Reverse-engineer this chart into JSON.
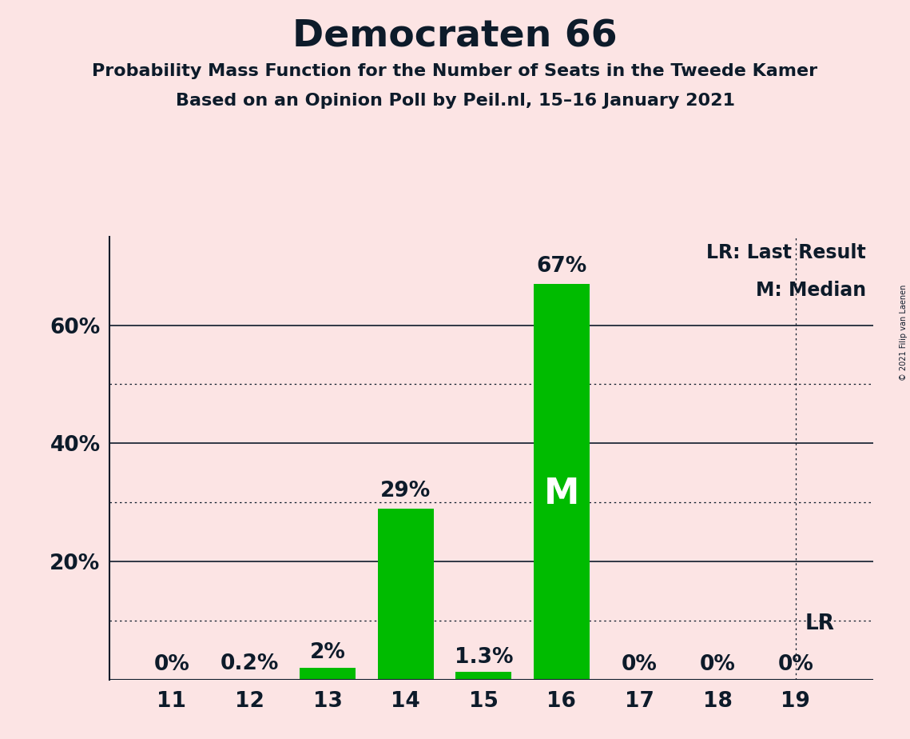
{
  "title": "Democraten 66",
  "subtitle1": "Probability Mass Function for the Number of Seats in the Tweede Kamer",
  "subtitle2": "Based on an Opinion Poll by Peil.nl, 15–16 January 2021",
  "copyright": "© 2021 Filip van Laenen",
  "seats": [
    11,
    12,
    13,
    14,
    15,
    16,
    17,
    18,
    19
  ],
  "probabilities": [
    0.0,
    0.2,
    2.0,
    29.0,
    1.3,
    67.0,
    0.0,
    0.0,
    0.0
  ],
  "labels": [
    "0%",
    "0.2%",
    "2%",
    "29%",
    "1.3%",
    "67%",
    "0%",
    "0%",
    "0%"
  ],
  "bar_color": "#00bb00",
  "background_color": "#fce4e4",
  "text_color": "#0d1b2a",
  "median_seat": 16,
  "last_result_seat": 19,
  "legend_lr": "LR: Last Result",
  "legend_m": "M: Median",
  "solid_gridlines": [
    20,
    40,
    60
  ],
  "dotted_gridlines": [
    10,
    30,
    50
  ],
  "ylim": [
    0,
    75
  ],
  "xlim_left": 10.2,
  "xlim_right": 20.0
}
